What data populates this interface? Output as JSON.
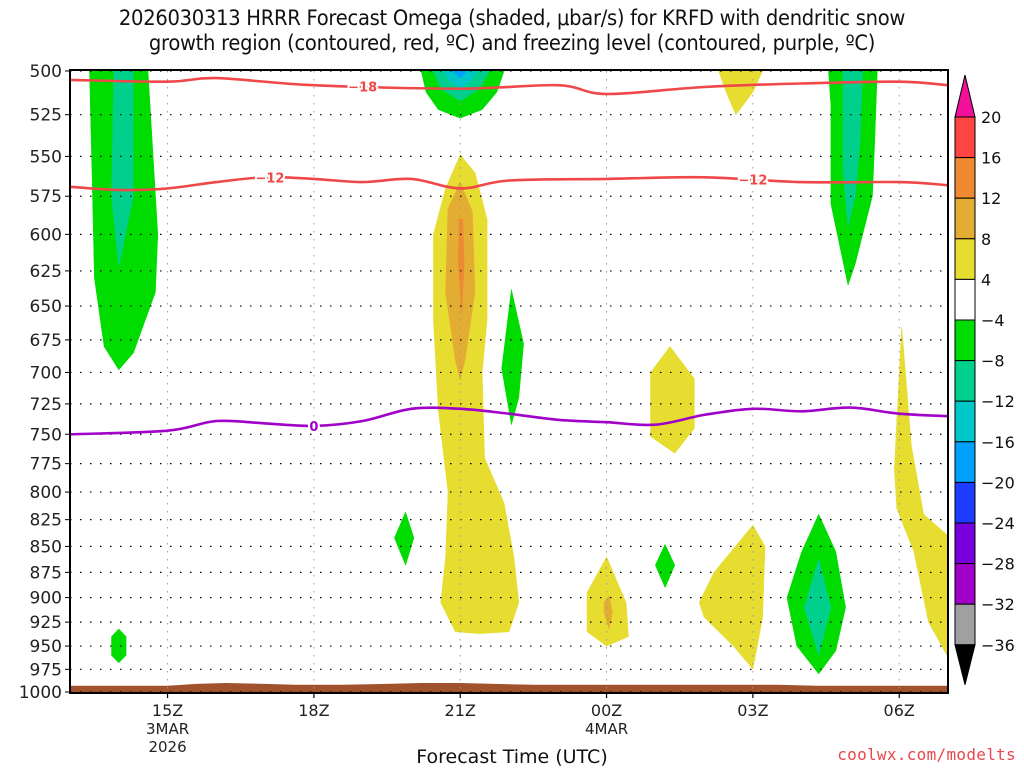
{
  "chart_data": {
    "type": "heatmap",
    "title_lines": [
      "2026030313 HRRR Forecast Omega (shaded, μbar/s) for KRFD with dendritic snow",
      "growth region (contoured, red, ºC) and freezing level (contoured, purple, ºC)"
    ],
    "xlabel": "Forecast Time (UTC)",
    "ylabel": "",
    "credit": "coolwx.com/modelts",
    "x_range_hours_from_13Z": [
      0,
      18
    ],
    "x_ticks": [
      {
        "hour": 2,
        "label": "15Z",
        "sub": [
          "3MAR",
          "2026"
        ]
      },
      {
        "hour": 5,
        "label": "18Z",
        "sub": []
      },
      {
        "hour": 8,
        "label": "21Z",
        "sub": []
      },
      {
        "hour": 11,
        "label": "00Z",
        "sub": [
          "4MAR"
        ]
      },
      {
        "hour": 14,
        "label": "03Z",
        "sub": []
      },
      {
        "hour": 17,
        "label": "06Z",
        "sub": []
      }
    ],
    "y_ticks": [
      500,
      525,
      550,
      575,
      600,
      625,
      650,
      675,
      700,
      725,
      750,
      775,
      800,
      825,
      850,
      875,
      900,
      925,
      950,
      975,
      1000
    ],
    "y_range_hPa": [
      500,
      1000
    ],
    "grid": true,
    "colorbar": {
      "placement": "right",
      "levels": [
        {
          "label": "20",
          "color": "#ff4444"
        },
        {
          "label": "16",
          "color": "#f08a30"
        },
        {
          "label": "12",
          "color": "#e3ac32"
        },
        {
          "label": "8",
          "color": "#e6dd30"
        },
        {
          "label": "4",
          "color": "#ffffff"
        },
        {
          "label": "−4",
          "color": "#00dc00"
        },
        {
          "label": "−8",
          "color": "#00d08c"
        },
        {
          "label": "−12",
          "color": "#00c8c8"
        },
        {
          "label": "−16",
          "color": "#00a0ff"
        },
        {
          "label": "−20",
          "color": "#1e3cff"
        },
        {
          "label": "−24",
          "color": "#7800dc"
        },
        {
          "label": "−28",
          "color": "#a000c8"
        },
        {
          "label": "−32",
          "color": "#a0a0a0"
        },
        {
          "label": "−36",
          "color": null
        }
      ],
      "top_arrow_color": "#f0109a",
      "bottom_arrow_color": "#000000"
    },
    "contours": [
      {
        "name": "-18C isotherm",
        "label": "−18",
        "color": "#f04848",
        "points": [
          [
            0,
            505
          ],
          [
            2,
            506
          ],
          [
            3,
            504
          ],
          [
            5,
            508
          ],
          [
            8,
            510
          ],
          [
            10,
            508
          ],
          [
            11,
            513
          ],
          [
            13,
            509
          ],
          [
            15,
            507
          ],
          [
            17,
            506
          ],
          [
            18,
            508
          ]
        ]
      },
      {
        "name": "-12C isotherm",
        "label": "−12",
        "color": "#f04848",
        "points": [
          [
            0,
            569
          ],
          [
            1,
            571
          ],
          [
            2,
            570
          ],
          [
            3,
            566
          ],
          [
            4,
            563
          ],
          [
            5,
            564
          ],
          [
            6,
            566
          ],
          [
            7,
            564
          ],
          [
            8,
            570
          ],
          [
            9,
            565
          ],
          [
            11,
            564
          ],
          [
            13,
            563
          ],
          [
            15,
            566
          ],
          [
            17,
            566
          ],
          [
            18,
            568
          ]
        ]
      },
      {
        "name": "0C freezing level",
        "label": "0",
        "color": "#a000c8",
        "points": [
          [
            0,
            750
          ],
          [
            2,
            747
          ],
          [
            3,
            739
          ],
          [
            4,
            741
          ],
          [
            5,
            743
          ],
          [
            6,
            739
          ],
          [
            7,
            729
          ],
          [
            8,
            729
          ],
          [
            9,
            733
          ],
          [
            10,
            738
          ],
          [
            11,
            740
          ],
          [
            12,
            742
          ],
          [
            13,
            734
          ],
          [
            14,
            729
          ],
          [
            15,
            731
          ],
          [
            16,
            728
          ],
          [
            17,
            733
          ],
          [
            18,
            735
          ]
        ]
      }
    ],
    "shaded_regions": [
      {
        "level": "-4",
        "color": "#00dc00",
        "desc": "left column 500-695 hPa near 14Z",
        "poly": [
          [
            0.4,
            500
          ],
          [
            1.6,
            500
          ],
          [
            1.8,
            600
          ],
          [
            1.75,
            640
          ],
          [
            1.3,
            685
          ],
          [
            1.0,
            698
          ],
          [
            0.7,
            680
          ],
          [
            0.5,
            630
          ],
          [
            0.45,
            560
          ]
        ]
      },
      {
        "level": "-8",
        "color": "#00d08c",
        "desc": "core of left column",
        "poly": [
          [
            0.9,
            500
          ],
          [
            1.3,
            500
          ],
          [
            1.3,
            575
          ],
          [
            1.0,
            622
          ],
          [
            0.85,
            575
          ]
        ]
      },
      {
        "level": "-4",
        "color": "#00dc00",
        "desc": "small cell 940-975 hPa at 14Z",
        "poly": [
          [
            0.85,
            940
          ],
          [
            1.0,
            932
          ],
          [
            1.15,
            940
          ],
          [
            1.15,
            960
          ],
          [
            1.0,
            968
          ],
          [
            0.85,
            960
          ]
        ]
      },
      {
        "level": "-4",
        "color": "#00dc00",
        "desc": "top cell near 21Z",
        "poly": [
          [
            7.2,
            500
          ],
          [
            8.9,
            500
          ],
          [
            8.75,
            512
          ],
          [
            8.45,
            522
          ],
          [
            8.0,
            527
          ],
          [
            7.55,
            522
          ],
          [
            7.3,
            512
          ]
        ]
      },
      {
        "level": "-8",
        "color": "#00d08c",
        "desc": "top cell level -8",
        "poly": [
          [
            7.45,
            500
          ],
          [
            8.6,
            500
          ],
          [
            8.4,
            510
          ],
          [
            8.0,
            517
          ],
          [
            7.6,
            510
          ]
        ]
      },
      {
        "level": "-12",
        "color": "#00c8c8",
        "desc": "top cell level -12",
        "poly": [
          [
            7.65,
            500
          ],
          [
            8.35,
            500
          ],
          [
            8.2,
            506
          ],
          [
            8.0,
            510
          ],
          [
            7.8,
            506
          ]
        ]
      },
      {
        "level": "-16",
        "color": "#00a0ff",
        "desc": "top cell level -16",
        "poly": [
          [
            7.85,
            500
          ],
          [
            8.15,
            500
          ],
          [
            8.0,
            504
          ]
        ]
      },
      {
        "level": "4",
        "color": "#e6dd30",
        "desc": "upward motion column near 21Z",
        "poly": [
          [
            7.7,
            570
          ],
          [
            8.0,
            549
          ],
          [
            8.3,
            560
          ],
          [
            8.55,
            590
          ],
          [
            8.55,
            660
          ],
          [
            8.45,
            700
          ],
          [
            8.5,
            770
          ],
          [
            8.9,
            810
          ],
          [
            9.1,
            860
          ],
          [
            9.2,
            905
          ],
          [
            9.0,
            935
          ],
          [
            8.4,
            937
          ],
          [
            7.9,
            935
          ],
          [
            7.6,
            905
          ],
          [
            7.7,
            860
          ],
          [
            7.75,
            800
          ],
          [
            7.55,
            730
          ],
          [
            7.45,
            660
          ],
          [
            7.45,
            600
          ]
        ]
      },
      {
        "level": "8",
        "color": "#e3ac32",
        "desc": "core of 21Z column",
        "poly": [
          [
            7.75,
            583
          ],
          [
            8.0,
            566
          ],
          [
            8.25,
            585
          ],
          [
            8.3,
            640
          ],
          [
            8.1,
            690
          ],
          [
            8.0,
            706
          ],
          [
            7.9,
            690
          ],
          [
            7.7,
            640
          ]
        ]
      },
      {
        "level": "12",
        "color": "#f08a30",
        "desc": "max core 21Z",
        "poly": [
          [
            7.98,
            590
          ],
          [
            8.05,
            590
          ],
          [
            8.08,
            620
          ],
          [
            8.03,
            655
          ],
          [
            7.96,
            620
          ]
        ]
      },
      {
        "level": "-4",
        "color": "#00dc00",
        "desc": "narrow cell near 22Z",
        "poly": [
          [
            8.85,
            697
          ],
          [
            9.05,
            638
          ],
          [
            9.3,
            678
          ],
          [
            9.2,
            720
          ],
          [
            9.05,
            742
          ]
        ]
      },
      {
        "level": "-4",
        "color": "#00dc00",
        "desc": "small cell near 20Z 850 hPa",
        "poly": [
          [
            6.65,
            842
          ],
          [
            6.88,
            818
          ],
          [
            7.05,
            842
          ],
          [
            6.88,
            868
          ]
        ]
      },
      {
        "level": "4",
        "color": "#e6dd30",
        "desc": "cell near 00Z 900 hPa",
        "poly": [
          [
            10.6,
            895
          ],
          [
            11.0,
            860
          ],
          [
            11.4,
            905
          ],
          [
            11.45,
            940
          ],
          [
            11.0,
            950
          ],
          [
            10.6,
            935
          ]
        ]
      },
      {
        "level": "8",
        "color": "#e3ac32",
        "desc": "core cell near 00Z",
        "poly": [
          [
            10.95,
            905
          ],
          [
            11.05,
            898
          ],
          [
            11.12,
            915
          ],
          [
            11.05,
            932
          ],
          [
            10.95,
            915
          ]
        ]
      },
      {
        "level": "-4",
        "color": "#00dc00",
        "desc": "small cell near 01Z 875 hPa",
        "poly": [
          [
            12.0,
            868
          ],
          [
            12.2,
            848
          ],
          [
            12.4,
            868
          ],
          [
            12.2,
            890
          ]
        ]
      },
      {
        "level": "4",
        "color": "#e6dd30",
        "desc": "cell near 01Z 700-765 hPa",
        "poly": [
          [
            11.9,
            700
          ],
          [
            12.3,
            680
          ],
          [
            12.8,
            705
          ],
          [
            12.8,
            745
          ],
          [
            12.4,
            766
          ],
          [
            11.9,
            752
          ]
        ]
      },
      {
        "level": "4",
        "color": "#e6dd30",
        "desc": "top cell near 02-03Z",
        "poly": [
          [
            13.3,
            500
          ],
          [
            14.2,
            500
          ],
          [
            14.0,
            512
          ],
          [
            13.65,
            525
          ],
          [
            13.45,
            512
          ]
        ]
      },
      {
        "level": "4",
        "color": "#e6dd30",
        "desc": "cell near 02-03Z 830-975 hPa",
        "poly": [
          [
            12.9,
            905
          ],
          [
            13.2,
            875
          ],
          [
            14.0,
            830
          ],
          [
            14.25,
            850
          ],
          [
            14.2,
            920
          ],
          [
            14.0,
            975
          ],
          [
            13.6,
            950
          ],
          [
            13.0,
            920
          ]
        ]
      },
      {
        "level": "-4",
        "color": "#00dc00",
        "desc": "cell near 04Z 820-980 hPa",
        "poly": [
          [
            14.7,
            900
          ],
          [
            15.0,
            855
          ],
          [
            15.35,
            820
          ],
          [
            15.7,
            855
          ],
          [
            15.9,
            910
          ],
          [
            15.7,
            955
          ],
          [
            15.35,
            980
          ],
          [
            14.9,
            950
          ]
        ]
      },
      {
        "level": "-8",
        "color": "#00d08c",
        "desc": "core cell near 04Z",
        "poly": [
          [
            15.05,
            910
          ],
          [
            15.35,
            862
          ],
          [
            15.6,
            910
          ],
          [
            15.35,
            960
          ]
        ]
      },
      {
        "level": "-4",
        "color": "#00dc00",
        "desc": "right column 500-630 hPa near 05Z",
        "poly": [
          [
            15.55,
            500
          ],
          [
            16.55,
            500
          ],
          [
            16.5,
            540
          ],
          [
            16.45,
            575
          ],
          [
            16.1,
            620
          ],
          [
            15.95,
            635
          ],
          [
            15.6,
            580
          ],
          [
            15.6,
            520
          ]
        ]
      },
      {
        "level": "-8",
        "color": "#00d08c",
        "desc": "core right column",
        "poly": [
          [
            15.85,
            500
          ],
          [
            16.25,
            500
          ],
          [
            16.2,
            540
          ],
          [
            16.1,
            575
          ],
          [
            15.95,
            595
          ],
          [
            15.85,
            560
          ]
        ]
      },
      {
        "level": "4",
        "color": "#e6dd30",
        "desc": "right edge tail 660-960 hPa",
        "poly": [
          [
            16.9,
            780
          ],
          [
            17.05,
            665
          ],
          [
            17.25,
            760
          ],
          [
            17.5,
            820
          ],
          [
            18.0,
            840
          ],
          [
            18.0,
            962
          ],
          [
            17.6,
            925
          ],
          [
            17.3,
            855
          ],
          [
            16.95,
            815
          ]
        ]
      }
    ],
    "terrain_hPa": [
      [
        0,
        993
      ],
      [
        2,
        993
      ],
      [
        2.6,
        991
      ],
      [
        3.2,
        990
      ],
      [
        4.0,
        991
      ],
      [
        4.6,
        992
      ],
      [
        5.6,
        992
      ],
      [
        6.5,
        991
      ],
      [
        7.2,
        990
      ],
      [
        8.0,
        990
      ],
      [
        8.7,
        991
      ],
      [
        9.5,
        992
      ],
      [
        14.5,
        992
      ],
      [
        15.3,
        993
      ],
      [
        18,
        993
      ]
    ]
  }
}
